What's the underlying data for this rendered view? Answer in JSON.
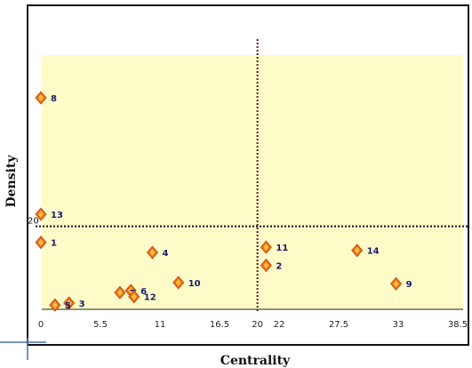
{
  "chart_data": {
    "type": "scatter",
    "xlabel": "Centrality",
    "ylabel": "Density",
    "xlim": [
      0,
      38.5
    ],
    "ylim": [
      0,
      55
    ],
    "x_ticks": [
      {
        "value": 0,
        "label": "0"
      },
      {
        "value": 5.5,
        "label": "5.5"
      },
      {
        "value": 11,
        "label": "11"
      },
      {
        "value": 16.5,
        "label": "16.5"
      },
      {
        "value": 20,
        "label": "20"
      },
      {
        "value": 22,
        "label": "22"
      },
      {
        "value": 27.5,
        "label": "27.5"
      },
      {
        "value": 33,
        "label": "33"
      },
      {
        "value": 38.5,
        "label": "38.5"
      }
    ],
    "reference_lines": {
      "vertical_x": 20,
      "horizontal_y": 20,
      "horizontal_label": "20"
    },
    "points": [
      {
        "label": "8",
        "x": 0,
        "y": 52
      },
      {
        "label": "13",
        "x": 0,
        "y": 23
      },
      {
        "label": "1",
        "x": 0,
        "y": 16
      },
      {
        "label": "4",
        "x": 10.3,
        "y": 13.5
      },
      {
        "label": "11",
        "x": 20.8,
        "y": 14.8
      },
      {
        "label": "2",
        "x": 20.8,
        "y": 10.3
      },
      {
        "label": "14",
        "x": 29.2,
        "y": 14.0
      },
      {
        "label": "10",
        "x": 12.7,
        "y": 6.0
      },
      {
        "label": "9",
        "x": 32.8,
        "y": 5.7
      },
      {
        "label": "6",
        "x": 8.3,
        "y": 4.0
      },
      {
        "label": "7",
        "x": 7.3,
        "y": 3.5
      },
      {
        "label": "12",
        "x": 8.6,
        "y": 2.5
      },
      {
        "label": "3",
        "x": 2.6,
        "y": 0.9
      },
      {
        "label": "5",
        "x": 1.3,
        "y": 0.4
      }
    ],
    "colors": {
      "plot_background": "#fdfcc8",
      "marker_fill": "#f26b1a",
      "marker_highlight": "#f9c23c",
      "reference_line": "#5a1a1a",
      "point_label": "#1a1a6e"
    }
  }
}
